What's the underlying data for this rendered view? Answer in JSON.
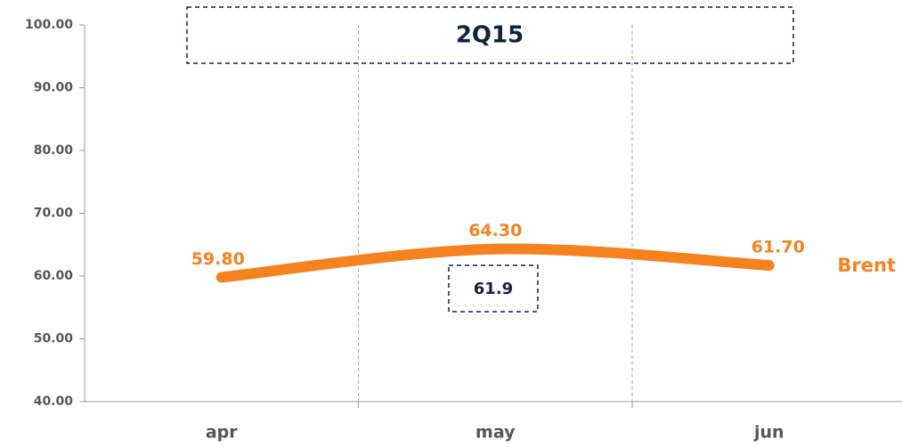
{
  "chart_data": {
    "type": "line",
    "categories": [
      "apr",
      "may",
      "jun"
    ],
    "series": [
      {
        "name": "Brent",
        "color": "#f5821f",
        "values": [
          59.8,
          64.3,
          61.7
        ],
        "value_labels": [
          "59.80",
          "64.30",
          "61.70"
        ]
      }
    ],
    "ylim": [
      40,
      100
    ],
    "yticks": [
      {
        "value": 40,
        "label": "40.00"
      },
      {
        "value": 50,
        "label": "50.00"
      },
      {
        "value": 60,
        "label": "60.00"
      },
      {
        "value": 70,
        "label": "70.00"
      },
      {
        "value": 80,
        "label": "80.00"
      },
      {
        "value": 90,
        "label": "90.00"
      },
      {
        "value": 100,
        "label": "100.00"
      }
    ],
    "annotations": [
      {
        "text": "2Q15"
      },
      {
        "text": "61.9"
      }
    ]
  }
}
